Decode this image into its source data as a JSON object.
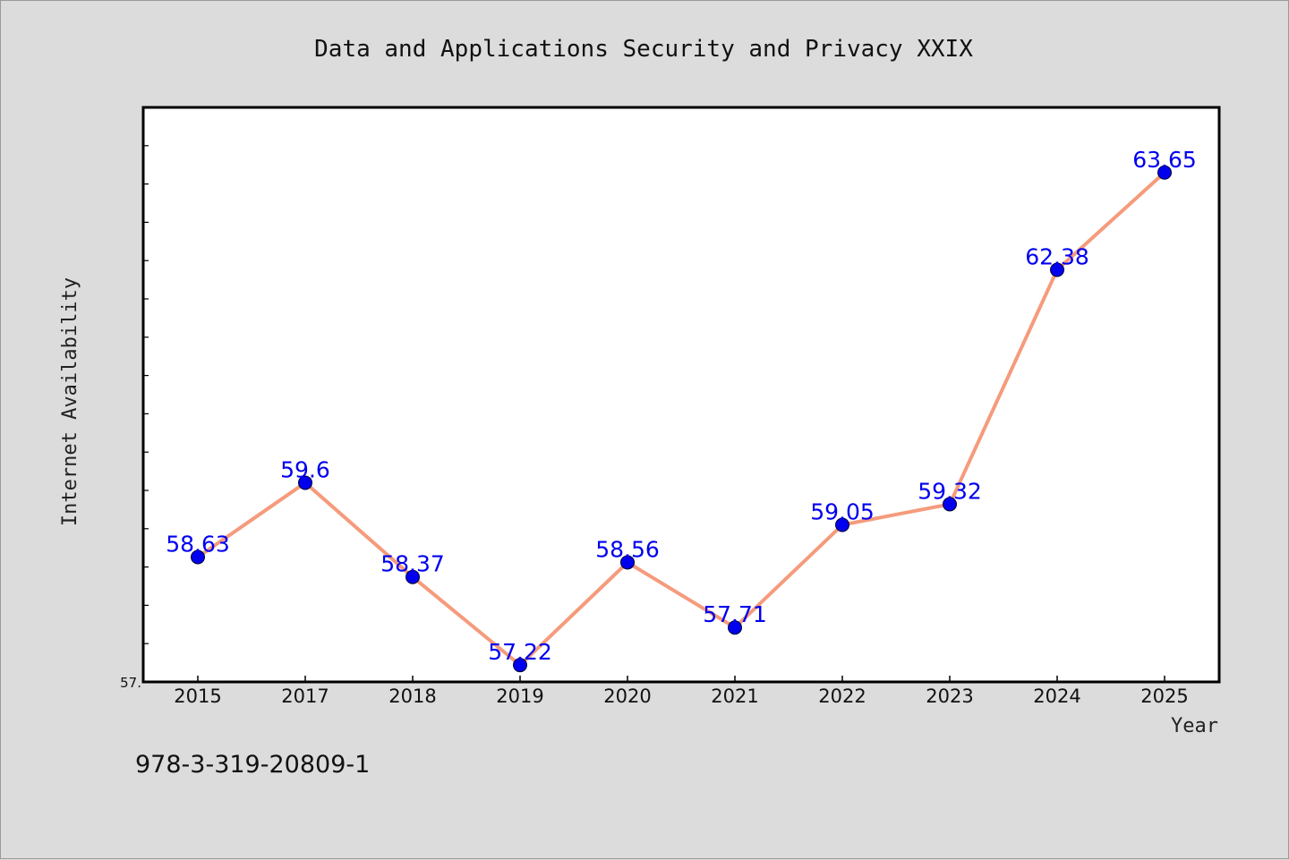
{
  "footer_text": "978-3-319-20809-1",
  "colors": {
    "background": "#dcdcdc",
    "plot_background": "#ffffff",
    "line": "#f59b7c",
    "marker": "#0000ee",
    "data_label": "#0000ee"
  },
  "chart_data": {
    "type": "line",
    "title": "Data and Applications Security and Privacy XXIX",
    "xlabel": "Year",
    "ylabel": "Internet Availability",
    "categories": [
      "2015",
      "2017",
      "2018",
      "2019",
      "2020",
      "2021",
      "2022",
      "2023",
      "2024",
      "2025"
    ],
    "series": [
      {
        "values": [
          58.63,
          59.6,
          58.37,
          57.22,
          58.56,
          57.71,
          59.05,
          59.32,
          62.38,
          63.65
        ],
        "labels": [
          "58.63",
          "59.6",
          "58.37",
          "57.22",
          "58.56",
          "57.71",
          "59.05",
          "59.32",
          "62.38",
          "63.65"
        ]
      }
    ],
    "ylim": [
      57.0,
      64.5
    ],
    "ytick_label": "57.",
    "grid": false,
    "legend": "none"
  }
}
